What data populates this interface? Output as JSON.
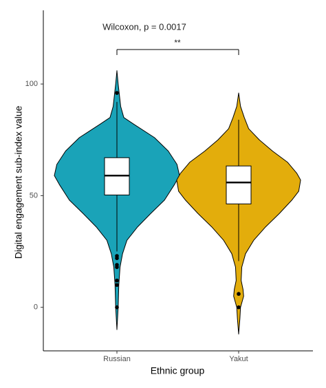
{
  "chart_data": {
    "type": "violin",
    "annotation": "Wilcoxon, p = 0.0017",
    "significance": "**",
    "x_label": "Ethnic group",
    "y_label": "Digital engagement sub-index value",
    "categories": [
      "Russian",
      "Yakut"
    ],
    "ylim": [
      -19.5,
      133
    ],
    "yticks": [
      0,
      50,
      100
    ],
    "series": [
      {
        "color": "#1aa3b8",
        "violin": {
          "y": [
            106,
            100,
            95,
            90,
            85,
            82,
            76,
            70,
            64,
            59,
            55,
            48,
            42,
            36,
            30,
            24,
            18,
            10,
            0,
            -10
          ],
          "density": [
            0,
            0.02,
            0.04,
            0.06,
            0.11,
            0.27,
            0.6,
            0.82,
            0.96,
            1,
            0.92,
            0.76,
            0.54,
            0.33,
            0.16,
            0.09,
            0.05,
            0.03,
            0.02,
            0
          ]
        },
        "box": {
          "whisker_low": 25,
          "q1": 50.3,
          "median": 59,
          "q3": 67,
          "whisker_high": 92
        },
        "outliers": [
          96,
          23,
          22,
          19,
          18,
          12,
          10,
          0
        ]
      },
      {
        "color": "#e3ad0c",
        "violin": {
          "y": [
            96,
            90,
            85,
            80,
            75,
            70,
            65,
            60,
            57,
            52,
            48,
            42,
            36,
            30,
            24,
            18,
            12,
            8,
            5,
            0,
            -5,
            -12
          ],
          "density": [
            0,
            0.03,
            0.09,
            0.16,
            0.33,
            0.54,
            0.78,
            0.93,
            0.99,
            0.96,
            0.85,
            0.65,
            0.43,
            0.24,
            0.11,
            0.05,
            0.04,
            0.07,
            0.08,
            0.03,
            0.02,
            0
          ]
        },
        "box": {
          "whisker_low": 20.7,
          "q1": 46.3,
          "median": 55.9,
          "q3": 63.3,
          "whisker_high": 84
        },
        "outliers": [
          6,
          0
        ]
      }
    ]
  }
}
